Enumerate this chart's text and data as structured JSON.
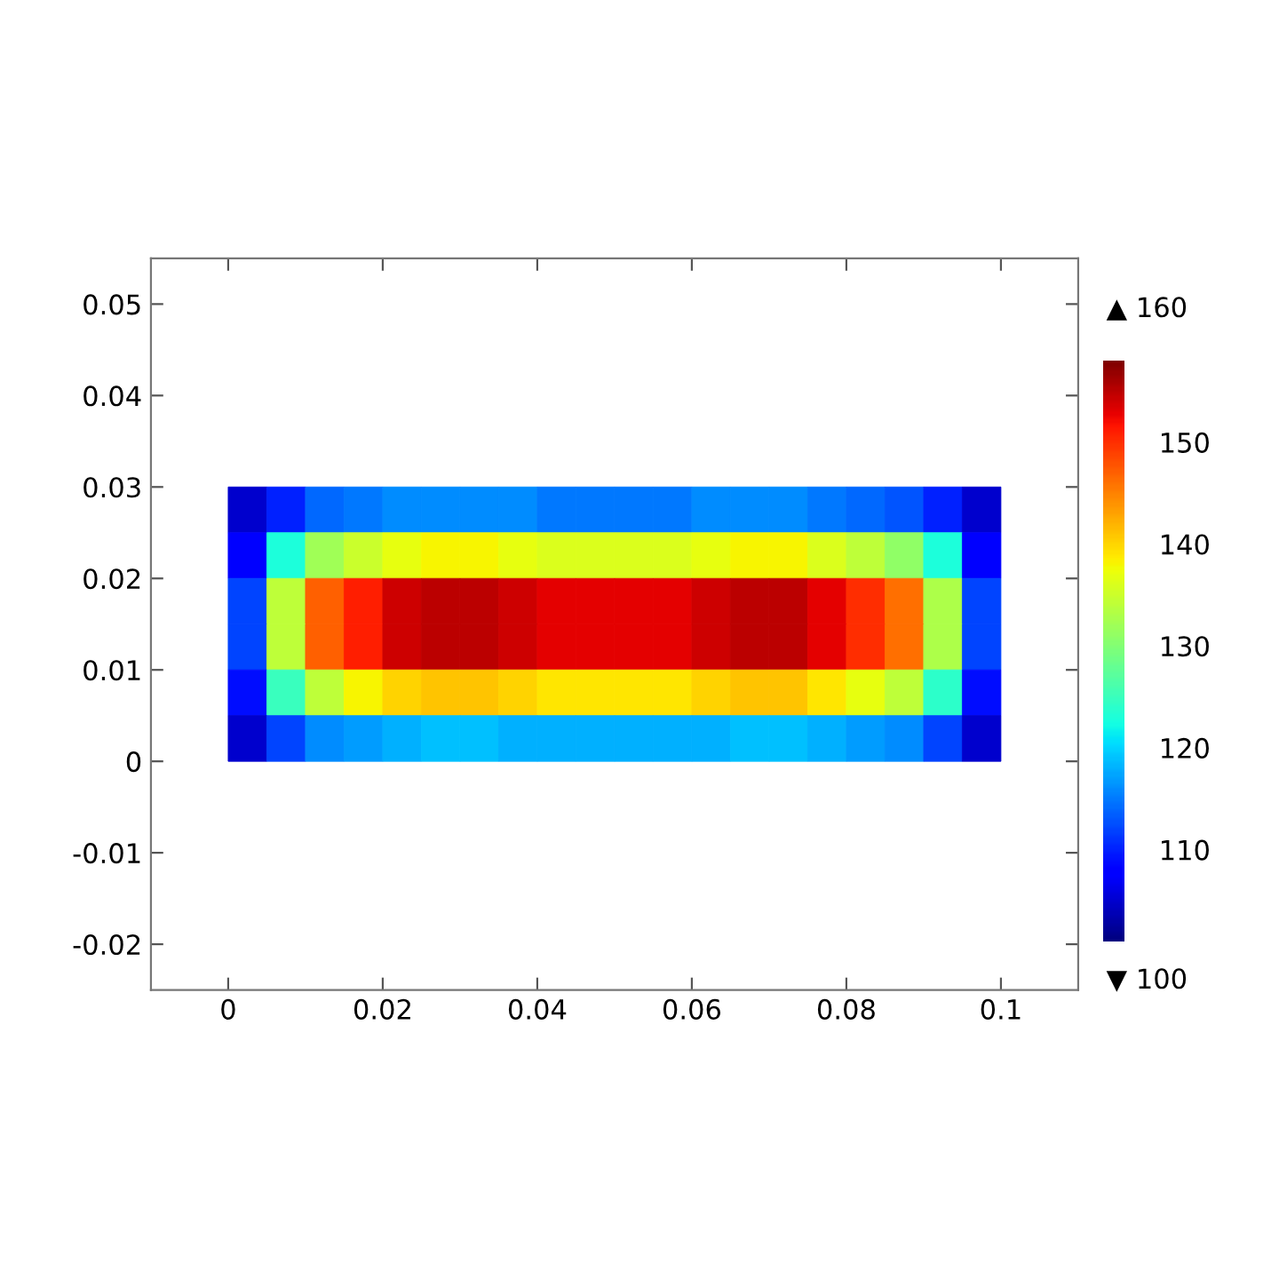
{
  "chart_data": {
    "type": "heatmap",
    "x": [
      0.0025,
      0.0075,
      0.0125,
      0.0175,
      0.0225,
      0.0275,
      0.0325,
      0.0375,
      0.0425,
      0.0475,
      0.0525,
      0.0575,
      0.0625,
      0.0675,
      0.0725,
      0.0775,
      0.0825,
      0.0875,
      0.0925,
      0.0975
    ],
    "y": [
      0.0275,
      0.0225,
      0.0175,
      0.0125,
      0.0075,
      0.0025
    ],
    "cells": [
      [
        105,
        110,
        114,
        115,
        116,
        116,
        116,
        116,
        115,
        115,
        115,
        115,
        116,
        116,
        116,
        115,
        114,
        113,
        110,
        105
      ],
      [
        108,
        123,
        132,
        135,
        137,
        138,
        138,
        137,
        136,
        136,
        136,
        136,
        137,
        138,
        138,
        136,
        134,
        131,
        123,
        108
      ],
      [
        112,
        134,
        147,
        151,
        154,
        155,
        155,
        154,
        153,
        153,
        153,
        153,
        154,
        155,
        155,
        153,
        150,
        146,
        133,
        112
      ],
      [
        112,
        134,
        147,
        151,
        154,
        155,
        155,
        154,
        153,
        153,
        153,
        153,
        154,
        155,
        155,
        153,
        150,
        146,
        133,
        112
      ],
      [
        109,
        125,
        134,
        138,
        140,
        141,
        141,
        140,
        139,
        139,
        139,
        139,
        140,
        141,
        141,
        139,
        137,
        134,
        124,
        109
      ],
      [
        105,
        112,
        116,
        117,
        118,
        119,
        119,
        118,
        118,
        118,
        118,
        118,
        118,
        119,
        119,
        118,
        117,
        116,
        112,
        105
      ]
    ],
    "xlim": [
      -0.01,
      0.11
    ],
    "xticks": [
      0,
      0.02,
      0.04,
      0.06,
      0.08,
      0.1
    ],
    "ylim": [
      -0.025,
      0.055
    ],
    "yticks": [
      -0.02,
      -0.01,
      0,
      0.01,
      0.02,
      0.03,
      0.04,
      0.05
    ],
    "clim": [
      101,
      158
    ],
    "cticks": [
      110,
      120,
      130,
      140,
      150
    ],
    "annotations": [
      "▲ 160",
      "▼ 100"
    ]
  }
}
